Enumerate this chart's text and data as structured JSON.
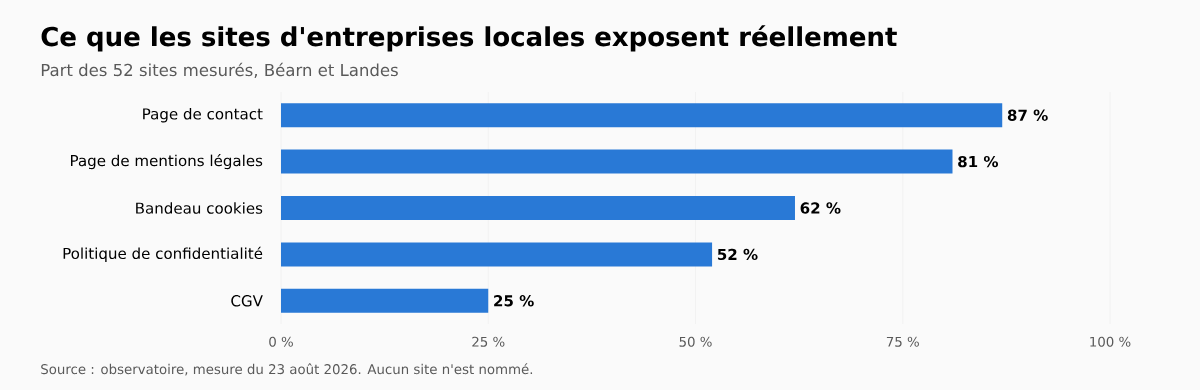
{
  "chart_data": {
    "type": "bar",
    "orientation": "horizontal",
    "title": "Ce que les sites d'entreprises locales exposent réellement",
    "subtitle": "Part des 52 sites mesurés, Béarn et Landes",
    "categories": [
      "Page de contact",
      "Page de mentions légales",
      "Bandeau cookies",
      "Politique de confidentialité",
      "CGV"
    ],
    "values": [
      87,
      81,
      62,
      52,
      25
    ],
    "value_labels": [
      "87 %",
      "81 %",
      "62 %",
      "52 %",
      "25 %"
    ],
    "color": "#2979d6",
    "xlim": [
      0,
      100
    ],
    "xticks": [
      {
        "value": 0,
        "label": "0 %"
      },
      {
        "value": 25,
        "label": "25 %"
      },
      {
        "value": 50,
        "label": "50 %"
      },
      {
        "value": 75,
        "label": "75 %"
      },
      {
        "value": 100,
        "label": "100 %"
      }
    ],
    "grid": "x",
    "annotations": [
      "Source : observatoire, mesure du 23 août 2026. Aucun site n'est nommé."
    ]
  }
}
